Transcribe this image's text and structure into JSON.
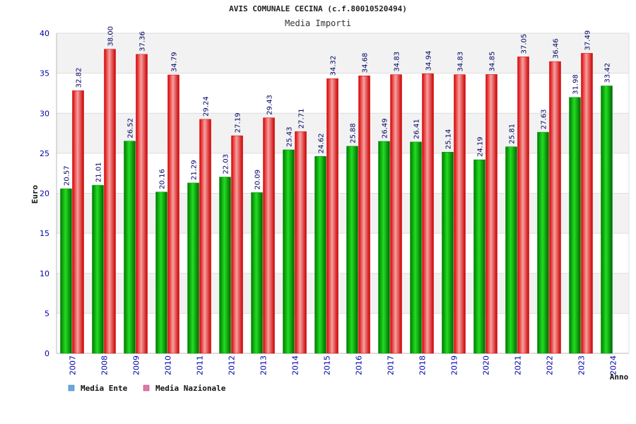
{
  "chart_data": {
    "type": "bar",
    "title": "AVIS COMUNALE CECINA (c.f.80010520494)",
    "subtitle": "Media Importi",
    "xlabel": "Anno",
    "ylabel": "Euro",
    "ylim": [
      0,
      40
    ],
    "yticks": [
      "0",
      "5",
      "10",
      "15",
      "20",
      "25",
      "30",
      "35",
      "40"
    ],
    "grid": true,
    "legend_position": "bottom-left",
    "categories": [
      "2007",
      "2008",
      "2009",
      "2010",
      "2011",
      "2012",
      "2013",
      "2014",
      "2015",
      "2016",
      "2017",
      "2018",
      "2019",
      "2020",
      "2021",
      "2022",
      "2023",
      "2024"
    ],
    "series": [
      {
        "name": "Media Ente",
        "color": "#00aa00",
        "legend_color": "#6aa8e0",
        "values": [
          20.57,
          21.01,
          26.52,
          20.16,
          21.29,
          22.03,
          20.09,
          25.43,
          24.62,
          25.88,
          26.49,
          26.41,
          25.14,
          24.19,
          25.81,
          27.63,
          31.98,
          33.42
        ],
        "labels": [
          "20.57",
          "21.01",
          "26.52",
          "20.16",
          "21.29",
          "22.03",
          "20.09",
          "25.43",
          "24.62",
          "25.88",
          "26.49",
          "26.41",
          "25.14",
          "24.19",
          "25.81",
          "27.63",
          "31.98",
          "33.42"
        ]
      },
      {
        "name": "Media Nazionale",
        "color": "#ee1111",
        "legend_color": "#e07aa8",
        "values": [
          32.82,
          38.0,
          37.36,
          34.79,
          29.24,
          27.19,
          29.43,
          27.71,
          34.32,
          34.68,
          34.83,
          34.94,
          34.83,
          34.85,
          37.05,
          36.46,
          37.49,
          null
        ],
        "labels": [
          "32.82",
          "38.00",
          "37.36",
          "34.79",
          "29.24",
          "27.19",
          "29.43",
          "27.71",
          "34.32",
          "34.68",
          "34.83",
          "34.94",
          "34.83",
          "34.85",
          "37.05",
          "36.46",
          "37.49",
          null
        ]
      }
    ]
  }
}
